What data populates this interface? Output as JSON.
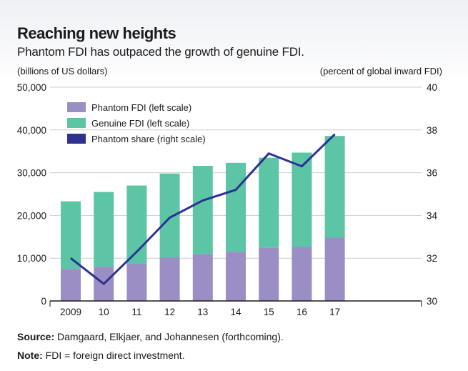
{
  "title": "Reaching new heights",
  "subtitle": "Phantom FDI has outpaced the growth of genuine FDI.",
  "chart_data": {
    "type": "bar",
    "stacked": true,
    "categories": [
      "2009",
      "10",
      "11",
      "12",
      "13",
      "14",
      "15",
      "16",
      "17"
    ],
    "series": [
      {
        "name": "Phantom FDI (left scale)",
        "type": "bar",
        "axis": "left",
        "color": "#9b8ec4",
        "values": [
          7500,
          8000,
          8800,
          10200,
          11000,
          11500,
          12500,
          12700,
          14800
        ]
      },
      {
        "name": "Genuine FDI (left scale)",
        "type": "bar",
        "axis": "left",
        "color": "#5cc5a6",
        "values": [
          15800,
          17500,
          18200,
          19600,
          20600,
          20800,
          21000,
          22000,
          23800
        ]
      },
      {
        "name": "Phantom share (right scale)",
        "type": "line",
        "axis": "right",
        "color": "#2e3192",
        "values": [
          32.0,
          30.8,
          32.3,
          33.9,
          34.7,
          35.2,
          36.9,
          36.3,
          37.8
        ]
      }
    ],
    "ylabel_left": "(billions of US dollars)",
    "ylabel_right": "(percent of global inward FDI)",
    "ylim_left": [
      0,
      50000
    ],
    "ylim_right": [
      30,
      40
    ],
    "yticks_left": [
      "0",
      "10,000",
      "20,000",
      "30,000",
      "40,000",
      "50,000"
    ],
    "yticks_right": [
      "30",
      "32",
      "34",
      "36",
      "38",
      "40"
    ],
    "grid": true,
    "legend_position": "top-left"
  },
  "footer": {
    "source_label": "Source:",
    "source_text": "Damgaard, Elkjaer, and Johannesen (forthcoming).",
    "note_label": "Note:",
    "note_text": "FDI = foreign direct investment."
  }
}
